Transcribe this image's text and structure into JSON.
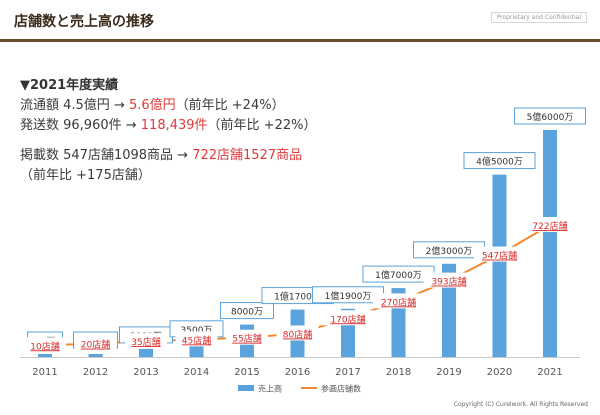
{
  "header": {
    "title": "店舗数と売上高の推移",
    "watermark": "Proprietary and Confidential"
  },
  "summary": {
    "heading": "▼2021年度実績",
    "lines": [
      {
        "prefix": "流通額 4.5億円 → ",
        "highlight": "5.6億円",
        "suffix": "（前年比 +24%）"
      },
      {
        "prefix": "発送数 96,960件 → ",
        "highlight": "118,439件",
        "suffix": "（前年比 +22%）"
      },
      {
        "prefix": "掲載数 547店舗1098商品 → ",
        "highlight": "722店舗1527商品",
        "suffix": ""
      },
      {
        "prefix": "（前年比 +175店舗）",
        "highlight": "",
        "suffix": ""
      }
    ]
  },
  "colors": {
    "bar": "#5aa3dd",
    "line": "#f08a2e",
    "store_label": "#d92b2b"
  },
  "chart_data": {
    "type": "bar",
    "categories": [
      "2011",
      "2012",
      "2013",
      "2014",
      "2015",
      "2016",
      "2017",
      "2018",
      "2019",
      "2020",
      "2021"
    ],
    "series": [
      {
        "name": "売上高",
        "type": "bar",
        "unit": "万円",
        "values": [
          10,
          500,
          2000,
          3500,
          8000,
          11700,
          11900,
          17000,
          23000,
          45000,
          56000
        ],
        "labels": [
          "10万",
          "500万",
          "2000万",
          "3500万",
          "8000万",
          "1億1700万",
          "1億1900万",
          "1億7000万",
          "2億3000万",
          "4億5000万",
          "5億6000万"
        ]
      },
      {
        "name": "参画店舗数",
        "type": "line",
        "unit": "店舗",
        "values": [
          10,
          20,
          35,
          45,
          55,
          80,
          170,
          270,
          393,
          547,
          722
        ],
        "labels": [
          "10店舗",
          "20店舗",
          "35店舗",
          "45店舗",
          "55店舗",
          "80店舗",
          "170店舗",
          "270店舗",
          "393店舗",
          "547店舗",
          "722店舗"
        ]
      }
    ],
    "legend_position": "bottom",
    "grid": false
  },
  "footer": {
    "copyright": "Copyright (C) Curelwork. All Rights Reserved"
  }
}
